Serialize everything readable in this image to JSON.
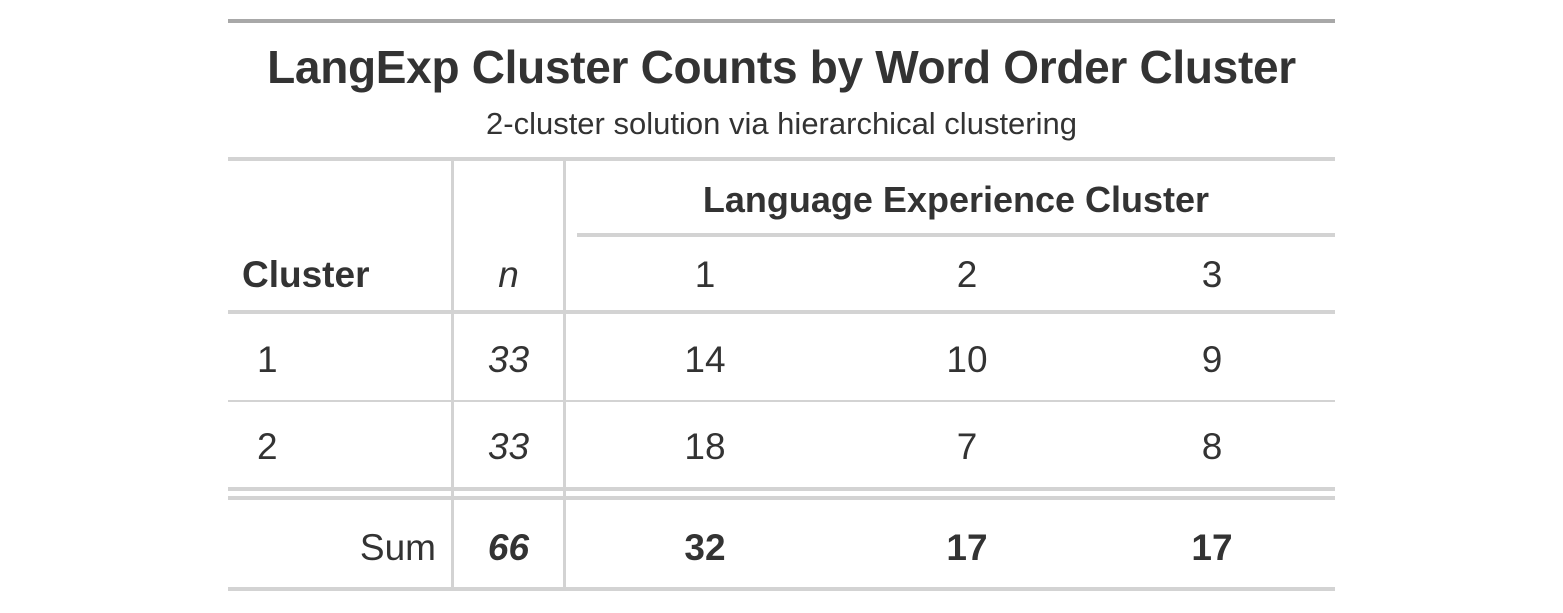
{
  "table": {
    "title": "LangExp Cluster Counts by Word Order Cluster",
    "subtitle": "2-cluster solution via hierarchical clustering",
    "spanner_label": "Language Experience Cluster",
    "columns": {
      "cluster": "Cluster",
      "n": "n",
      "c1": "1",
      "c2": "2",
      "c3": "3"
    },
    "rows": [
      {
        "cluster": "1",
        "n": "33",
        "c1": "14",
        "c2": "10",
        "c3": "9"
      },
      {
        "cluster": "2",
        "n": "33",
        "c1": "18",
        "c2": "7",
        "c3": "8"
      }
    ],
    "summary": {
      "label": "Sum",
      "n": "66",
      "c1": "32",
      "c2": "17",
      "c3": "17"
    }
  }
}
